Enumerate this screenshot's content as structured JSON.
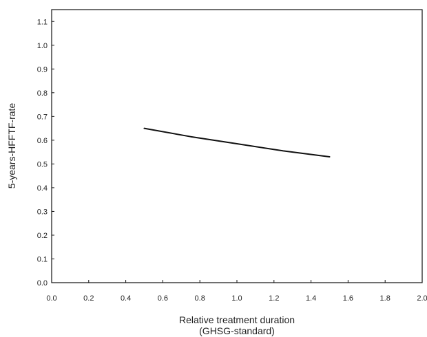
{
  "chart_data": {
    "type": "line",
    "xlabel": "Relative treatment duration",
    "xlabel_sub": "(GHSG-standard)",
    "ylabel": "5-years-HFFTF-rate",
    "xlim": [
      0.0,
      2.0
    ],
    "ylim": [
      0.0,
      1.15
    ],
    "grid": false,
    "x_ticks": [
      0.0,
      0.2,
      0.4,
      0.6,
      0.8,
      1.0,
      1.2,
      1.4,
      1.6,
      1.8,
      2.0
    ],
    "x_tick_labels": [
      "0.0",
      "0.2",
      "0.4",
      "0.6",
      "0.8",
      "1.0",
      "1.2",
      "1.4",
      "1.6",
      "1.8",
      "2.0"
    ],
    "y_ticks": [
      0.0,
      0.1,
      0.2,
      0.3,
      0.4,
      0.5,
      0.6,
      0.7,
      0.8,
      0.9,
      1.0,
      1.1
    ],
    "y_tick_labels": [
      "0.0",
      "0.1",
      "0.2",
      "0.3",
      "0.4",
      "0.5",
      "0.6",
      "0.7",
      "0.8",
      "0.9",
      "1.0",
      "1.1"
    ],
    "series": [
      {
        "color": "#111111",
        "x": [
          0.5,
          0.75,
          1.0,
          1.25,
          1.5
        ],
        "y": [
          0.65,
          0.615,
          0.585,
          0.555,
          0.53
        ]
      }
    ]
  }
}
